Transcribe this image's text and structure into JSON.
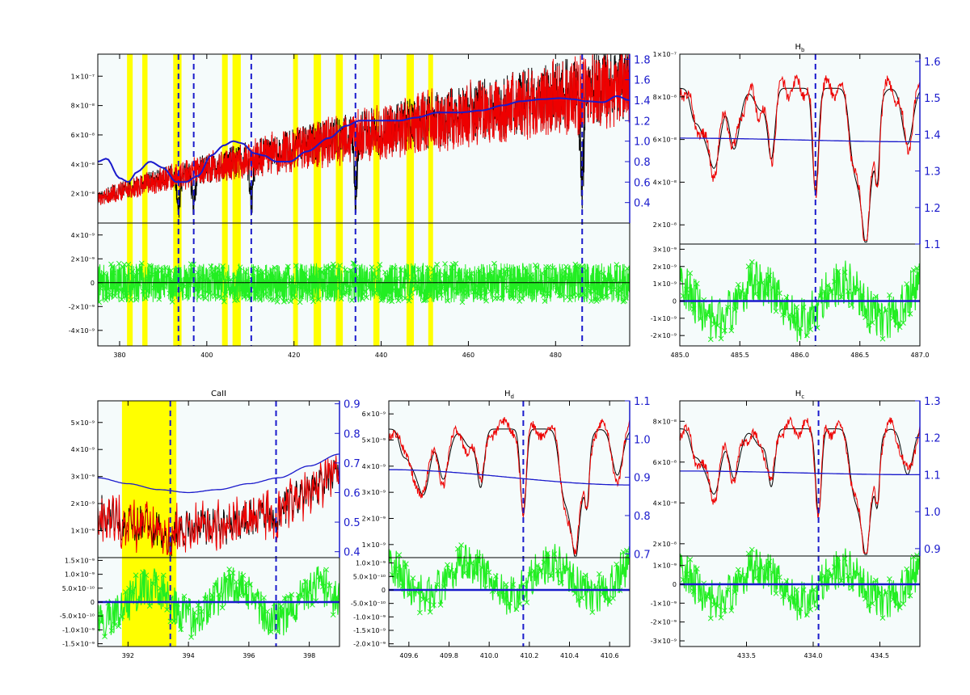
{
  "colors": {
    "background": "#ffffff",
    "plot_background": "#f5fbfb",
    "observed": "#000000",
    "model": "#ee0000",
    "continuum": "#1a1acc",
    "residuals": "#22ee22",
    "marker_line": "#1a1acc",
    "band": "#ffff00"
  },
  "chart_data": [
    {
      "id": "full",
      "type": "line",
      "title": "",
      "xlim": [
        375,
        497
      ],
      "x_ticks": [
        "380",
        "400",
        "420",
        "440",
        "460",
        "480"
      ],
      "x_tick_values": [
        380,
        400,
        420,
        440,
        460,
        480
      ],
      "top": {
        "ylim": [
          0,
          1.15e-07
        ],
        "y_ticks": [
          "2×10⁻⁸",
          "4×10⁻⁸",
          "6×10⁻⁸",
          "8×10⁻⁸",
          "1×10⁻⁷"
        ],
        "y_tick_values": [
          2e-08,
          4e-08,
          6e-08,
          8e-08,
          1e-07
        ],
        "right_ylim": [
          0.2,
          1.85
        ],
        "right_ticks": [
          "0.4",
          "0.6",
          "0.8",
          "1.0",
          "1.2",
          "1.4",
          "1.6",
          "1.8"
        ],
        "right_tick_values": [
          0.4,
          0.6,
          0.8,
          1.0,
          1.2,
          1.4,
          1.6,
          1.8
        ]
      },
      "bottom": {
        "ylim": [
          -5.3e-09,
          5e-09
        ],
        "y_ticks": [
          "4×10⁻⁹",
          "2×10⁻⁹",
          "0",
          "-2×10⁻⁹",
          "-4×10⁻⁹"
        ],
        "y_tick_values": [
          4e-09,
          2e-09,
          0,
          -2e-09,
          -4e-09
        ]
      },
      "bands": [
        [
          381.7,
          383.0
        ],
        [
          385.2,
          386.4
        ],
        [
          392.3,
          394.2
        ],
        [
          403.5,
          404.8
        ],
        [
          405.9,
          407.8
        ],
        [
          419.8,
          420.9
        ],
        [
          424.5,
          426.2
        ],
        [
          429.6,
          431.2
        ],
        [
          438.2,
          439.6
        ],
        [
          445.8,
          447.5
        ],
        [
          450.8,
          451.9
        ]
      ],
      "vlines": [
        393.5,
        397.0,
        410.2,
        434.1,
        486.1
      ],
      "continuum_knots": [
        [
          375,
          0.8
        ],
        [
          377,
          0.83
        ],
        [
          380,
          0.64
        ],
        [
          382,
          0.6
        ],
        [
          384,
          0.7
        ],
        [
          387,
          0.8
        ],
        [
          390,
          0.74
        ],
        [
          393,
          0.6
        ],
        [
          395,
          0.6
        ],
        [
          398,
          0.66
        ],
        [
          401,
          0.86
        ],
        [
          404,
          0.96
        ],
        [
          406,
          1.0
        ],
        [
          408,
          0.98
        ],
        [
          411,
          0.88
        ],
        [
          413,
          0.86
        ],
        [
          416,
          0.8
        ],
        [
          419,
          0.8
        ],
        [
          423,
          0.9
        ],
        [
          428,
          1.03
        ],
        [
          432,
          1.15
        ],
        [
          435,
          1.2
        ],
        [
          440,
          1.2
        ],
        [
          444,
          1.2
        ],
        [
          448,
          1.23
        ],
        [
          453,
          1.28
        ],
        [
          458,
          1.28
        ],
        [
          463,
          1.3
        ],
        [
          468,
          1.35
        ],
        [
          472,
          1.39
        ],
        [
          477,
          1.41
        ],
        [
          481,
          1.42
        ],
        [
          484,
          1.41
        ],
        [
          487,
          1.39
        ],
        [
          491,
          1.38
        ],
        [
          494,
          1.44
        ],
        [
          497,
          1.4
        ]
      ]
    },
    {
      "id": "hb",
      "type": "line",
      "title": "H",
      "title_sub": "b",
      "xlim": [
        485.0,
        487.0
      ],
      "x_ticks": [
        "485.0",
        "485.5",
        "486.0",
        "486.5",
        "487.0"
      ],
      "x_tick_values": [
        485.0,
        485.5,
        486.0,
        486.5,
        487.0
      ],
      "top": {
        "ylim": [
          1.1e-08,
          1e-07
        ],
        "y_ticks": [
          "2×10⁻⁸",
          "4×10⁻⁸",
          "6×10⁻⁸",
          "8×10⁻⁸",
          "1×10⁻⁷"
        ],
        "y_tick_values": [
          2e-08,
          4e-08,
          6e-08,
          8e-08,
          1e-07
        ],
        "right_ylim": [
          1.1,
          1.62
        ],
        "right_ticks": [
          "1.1",
          "1.2",
          "1.3",
          "1.4",
          "1.5",
          "1.6"
        ],
        "right_tick_values": [
          1.1,
          1.2,
          1.3,
          1.4,
          1.5,
          1.6
        ]
      },
      "bottom": {
        "ylim": [
          -2.6e-09,
          3.3e-09
        ],
        "y_ticks": [
          "3×10⁻⁹",
          "2×10⁻⁹",
          "1×10⁻⁹",
          "0",
          "-1×10⁻⁹",
          "-2×10⁻⁹"
        ],
        "y_tick_values": [
          3e-09,
          2e-09,
          1e-09,
          0,
          -1e-09,
          -2e-09
        ]
      },
      "bands": [],
      "vlines": [
        486.13
      ],
      "continuum_knots": [
        [
          485.0,
          1.39
        ],
        [
          487.0,
          1.38
        ]
      ]
    },
    {
      "id": "caii",
      "type": "line",
      "title": "CaII",
      "xlim": [
        391.0,
        399.0
      ],
      "x_ticks": [
        "392",
        "394",
        "396",
        "398"
      ],
      "x_tick_values": [
        392,
        394,
        396,
        398
      ],
      "top": {
        "ylim": [
          0,
          5.8e-09
        ],
        "y_ticks": [
          "1×10⁻⁹",
          "2×10⁻⁹",
          "3×10⁻⁹",
          "4×10⁻⁹",
          "5×10⁻⁹"
        ],
        "y_tick_values": [
          1e-09,
          2e-09,
          3e-09,
          4e-09,
          5e-09
        ],
        "right_ylim": [
          0.38,
          0.91
        ],
        "right_ticks": [
          "0.4",
          "0.5",
          "0.6",
          "0.7",
          "0.8",
          "0.9"
        ],
        "right_tick_values": [
          0.4,
          0.5,
          0.6,
          0.7,
          0.8,
          0.9
        ]
      },
      "bottom": {
        "ylim": [
          -1.6e-09,
          1.6e-09
        ],
        "y_ticks": [
          "1.5×10⁻⁹",
          "1.0×10⁻⁹",
          "5.0×10⁻¹⁰",
          "0",
          "-5.0×10⁻¹⁰",
          "-1.0×10⁻⁹",
          "-1.5×10⁻⁹"
        ],
        "y_tick_values": [
          1.5e-09,
          1e-09,
          5e-10,
          0,
          -5e-10,
          -1e-09,
          -1.5e-09
        ]
      },
      "bands": [
        [
          391.8,
          393.6
        ]
      ],
      "vlines": [
        393.4,
        396.9
      ],
      "continuum_knots": [
        [
          391.0,
          0.65
        ],
        [
          392.0,
          0.63
        ],
        [
          393.0,
          0.61
        ],
        [
          394.0,
          0.6
        ],
        [
          395.0,
          0.61
        ],
        [
          396.0,
          0.63
        ],
        [
          397.0,
          0.65
        ],
        [
          398.0,
          0.69
        ],
        [
          399.0,
          0.73
        ]
      ]
    },
    {
      "id": "hd",
      "type": "line",
      "title": "H",
      "title_sub": "d",
      "xlim": [
        409.5,
        410.7
      ],
      "x_ticks": [
        "409.6",
        "409.8",
        "410.0",
        "410.2",
        "410.4",
        "410.6"
      ],
      "x_tick_values": [
        409.6,
        409.8,
        410.0,
        410.2,
        410.4,
        410.6
      ],
      "top": {
        "ylim": [
          5e-10,
          6.5e-09
        ],
        "y_ticks": [
          "1×10⁻⁹",
          "2×10⁻⁹",
          "3×10⁻⁹",
          "4×10⁻⁹",
          "5×10⁻⁹",
          "6×10⁻⁹"
        ],
        "y_tick_values": [
          1e-09,
          2e-09,
          3e-09,
          4e-09,
          5e-09,
          6e-09
        ],
        "right_ylim": [
          0.69,
          1.1
        ],
        "right_ticks": [
          "0.7",
          "0.8",
          "0.9",
          "1.0",
          "1.1"
        ],
        "right_tick_values": [
          0.7,
          0.8,
          0.9,
          1.0,
          1.1
        ]
      },
      "bottom": {
        "ylim": [
          -2.1e-09,
          1.2e-09
        ],
        "y_ticks": [
          "1.0×10⁻⁹",
          "5.0×10⁻¹⁰",
          "0",
          "-5.0×10⁻¹⁰",
          "-1.0×10⁻⁹",
          "-1.5×10⁻⁹",
          "-2.0×10⁻⁹"
        ],
        "y_tick_values": [
          1e-09,
          5e-10,
          0,
          -5e-10,
          -1e-09,
          -1.5e-09,
          -2e-09
        ],
        "series_offset": 4e-10
      },
      "bands": [],
      "vlines": [
        410.17
      ],
      "continuum_knots": [
        [
          409.5,
          0.92
        ],
        [
          410.7,
          0.88
        ]
      ]
    },
    {
      "id": "hg",
      "type": "line",
      "title": "H",
      "title_sub": "c",
      "xlim": [
        433.0,
        434.8
      ],
      "x_ticks": [
        "433.5",
        "434.0",
        "434.5"
      ],
      "x_tick_values": [
        433.5,
        434.0,
        434.5
      ],
      "top": {
        "ylim": [
          1.4e-08,
          9e-08
        ],
        "y_ticks": [
          "2×10⁻⁸",
          "4×10⁻⁸",
          "6×10⁻⁸",
          "8×10⁻⁸"
        ],
        "y_tick_values": [
          2e-08,
          4e-08,
          6e-08,
          8e-08
        ],
        "right_ylim": [
          0.88,
          1.3
        ],
        "right_ticks": [
          "0.9",
          "1.0",
          "1.1",
          "1.2",
          "1.3"
        ],
        "right_tick_values": [
          0.9,
          1.0,
          1.1,
          1.2,
          1.3
        ]
      },
      "bottom": {
        "ylim": [
          -3.3e-09,
          1.5e-09
        ],
        "y_ticks": [
          "1×10⁻⁹",
          "0",
          "-1×10⁻⁹",
          "-2×10⁻⁹",
          "-3×10⁻⁹"
        ],
        "y_tick_values": [
          1e-09,
          0,
          -1e-09,
          -2e-09,
          -3e-09
        ]
      },
      "bands": [],
      "vlines": [
        434.04
      ],
      "continuum_knots": [
        [
          433.0,
          1.11
        ],
        [
          434.8,
          1.1
        ]
      ]
    }
  ]
}
